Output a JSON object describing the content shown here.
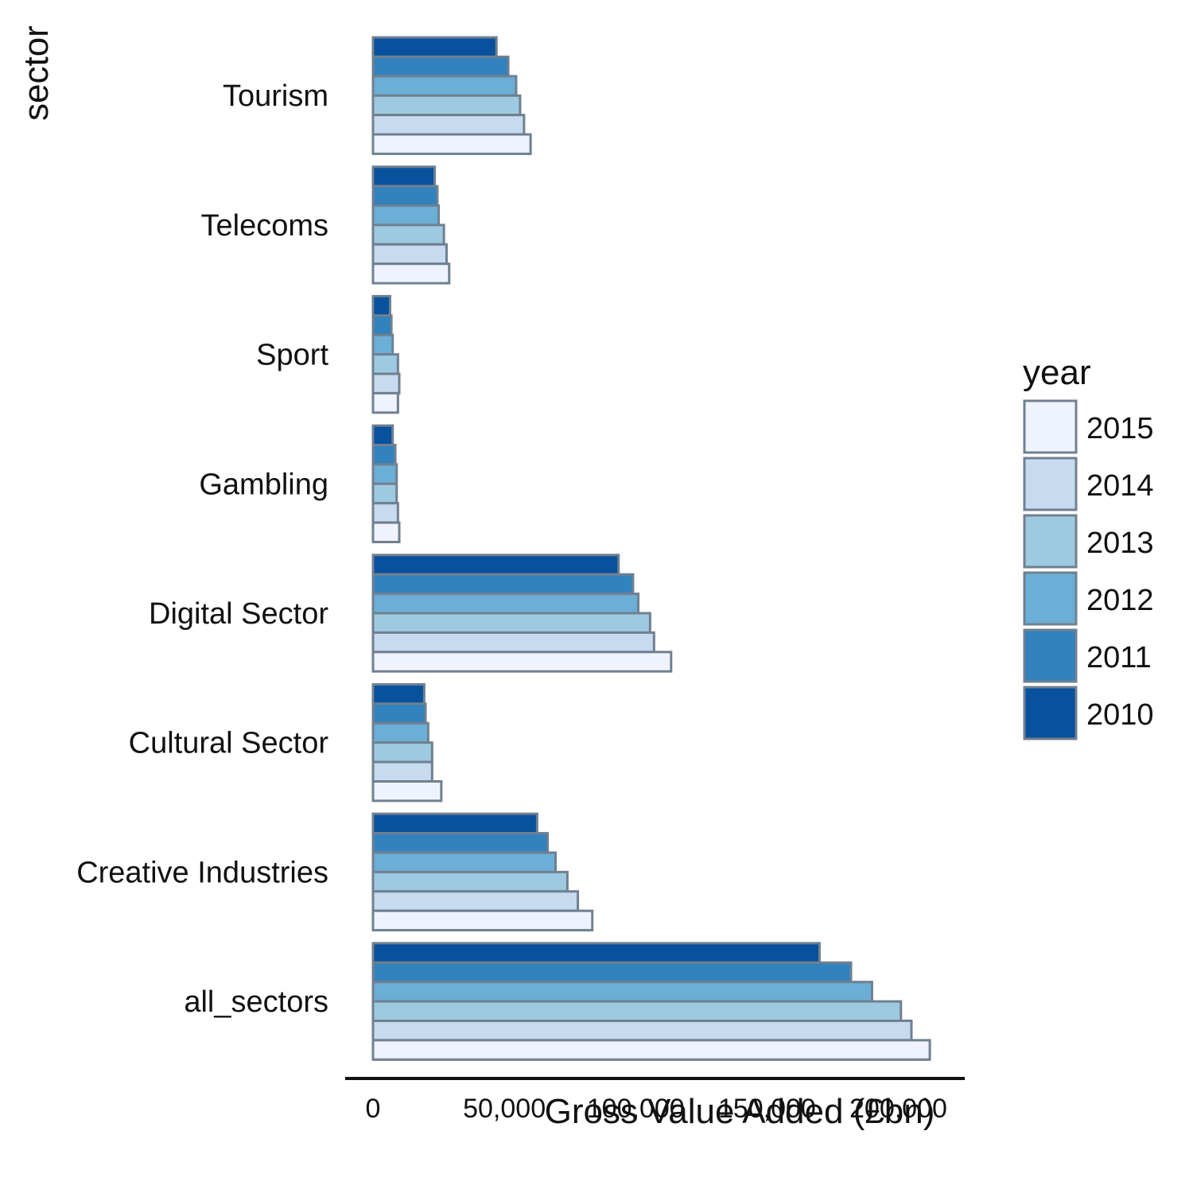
{
  "chart_data": {
    "type": "bar",
    "orientation": "horizontal",
    "xlabel": "Gross Value Added (£bn)",
    "ylabel": "sector",
    "xlim": [
      0,
      215000
    ],
    "xticks": [
      0,
      50000,
      100000,
      150000,
      200000
    ],
    "xtick_labels": [
      "0",
      "50,000",
      "100,000",
      "150,000",
      "200,000"
    ],
    "categories": [
      "Tourism",
      "Telecoms",
      "Sport",
      "Gambling",
      "Digital Sector",
      "Cultural Sector",
      "Creative Industries",
      "all_sectors"
    ],
    "series": [
      {
        "name": "2010",
        "color": "#08519c",
        "values": [
          47000,
          23500,
          6500,
          7500,
          93500,
          19500,
          62500,
          170000
        ]
      },
      {
        "name": "2011",
        "color": "#3182bd",
        "values": [
          51500,
          24500,
          7000,
          8500,
          99000,
          20000,
          66500,
          182000
        ]
      },
      {
        "name": "2012",
        "color": "#6baed6",
        "values": [
          54500,
          25000,
          7500,
          9000,
          101000,
          21000,
          69500,
          190000
        ]
      },
      {
        "name": "2013",
        "color": "#9ecae1",
        "values": [
          56000,
          27000,
          9500,
          9000,
          105500,
          22500,
          74000,
          201000
        ]
      },
      {
        "name": "2014",
        "color": "#c6dbef",
        "values": [
          57500,
          28000,
          10000,
          9500,
          107000,
          22500,
          78000,
          205000
        ]
      },
      {
        "name": "2015",
        "color": "#eff3ff",
        "values": [
          60000,
          29000,
          9500,
          10000,
          113500,
          26000,
          83500,
          212000
        ]
      }
    ],
    "bar_outline_color": "#708090",
    "legend": {
      "title": "year",
      "position": "right",
      "order": [
        "2015",
        "2014",
        "2013",
        "2012",
        "2011",
        "2010"
      ]
    },
    "grid": false
  }
}
